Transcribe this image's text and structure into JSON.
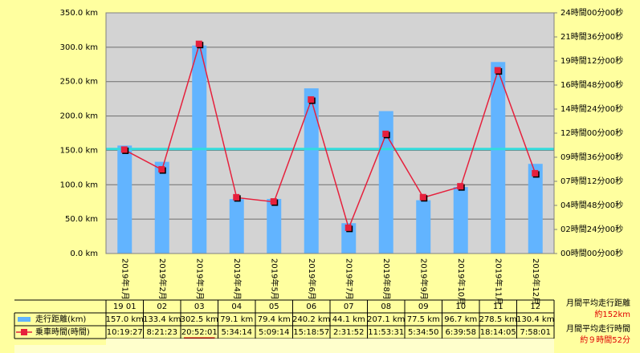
{
  "chart_data": {
    "type": "combo",
    "categories": [
      "2019年1月",
      "2019年2月",
      "2019年3月",
      "2019年4月",
      "2019年5月",
      "2019年6月",
      "2019年7月",
      "2019年8月",
      "2019年9月",
      "2019年10月",
      "2019年11月",
      "2019年12月"
    ],
    "table_columns": [
      "19 01",
      "02",
      "03",
      "04",
      "05",
      "06",
      "07",
      "08",
      "09",
      "10",
      "11",
      "12"
    ],
    "series": [
      {
        "name": "走行距離(km)",
        "type": "bar",
        "color": "#62b4ff",
        "values": [
          157.0,
          133.4,
          302.5,
          79.1,
          79.4,
          240.2,
          44.1,
          207.1,
          77.5,
          96.7,
          278.5,
          130.4
        ],
        "value_labels": [
          "157.0 km",
          "133.4 km",
          "302.5 km",
          "79.1 km",
          "79.4 km",
          "240.2 km",
          "44.1 km",
          "207.1 km",
          "77.5 km",
          "96.7 km",
          "278.5 km",
          "130.4 km"
        ]
      },
      {
        "name": "乗車時間(時間)",
        "type": "line",
        "axis": "y2",
        "color": "#e6203c",
        "values": [
          10.3242,
          8.3564,
          20.8669,
          5.5706,
          5.1539,
          15.3158,
          2.5311,
          11.8919,
          5.5806,
          6.6661,
          18.2347,
          7.9669
        ],
        "value_labels": [
          "10:19:27",
          "8:21:23",
          "20:52:01",
          "5:34:14",
          "5:09:14",
          "15:18:57",
          "2:31:52",
          "11:53:31",
          "5:34:50",
          "6:39:58",
          "18:14:05",
          "7:58:01"
        ]
      }
    ],
    "ylim": [
      0,
      350
    ],
    "yticks": [
      {
        "value": 0,
        "label": "0.0 km"
      },
      {
        "value": 50,
        "label": "50.0 km"
      },
      {
        "value": 100,
        "label": "100.0 km"
      },
      {
        "value": 150,
        "label": "150.0 km"
      },
      {
        "value": 200,
        "label": "200.0 km"
      },
      {
        "value": 250,
        "label": "250.0 km"
      },
      {
        "value": 300,
        "label": "300.0 km"
      },
      {
        "value": 350,
        "label": "350.0 km"
      }
    ],
    "y2lim": [
      0,
      24
    ],
    "y2ticks": [
      {
        "value": 0,
        "label": "00時間00分00秒"
      },
      {
        "value": 2.4,
        "label": "02時間24分00秒"
      },
      {
        "value": 4.8,
        "label": "04時間48分00秒"
      },
      {
        "value": 7.2,
        "label": "07時間12分00秒"
      },
      {
        "value": 9.6,
        "label": "09時間36分00秒"
      },
      {
        "value": 12,
        "label": "12時間00分00秒"
      },
      {
        "value": 14.4,
        "label": "14時間24分00秒"
      },
      {
        "value": 16.8,
        "label": "16時間48分00秒"
      },
      {
        "value": 19.2,
        "label": "19時間12分00秒"
      },
      {
        "value": 21.6,
        "label": "21時間36分00秒"
      },
      {
        "value": 24,
        "label": "24時間00分00秒"
      }
    ],
    "grid": true,
    "average_line": {
      "value": 152,
      "color": "#33dddd"
    },
    "annotations": [
      {
        "text": "月間平均走行距離",
        "color": "#000000"
      },
      {
        "text": "約152km",
        "color": "#e00000"
      },
      {
        "text": "月間平均走行時間",
        "color": "#000000"
      },
      {
        "text": "約９時間52分",
        "color": "#e00000"
      }
    ]
  }
}
